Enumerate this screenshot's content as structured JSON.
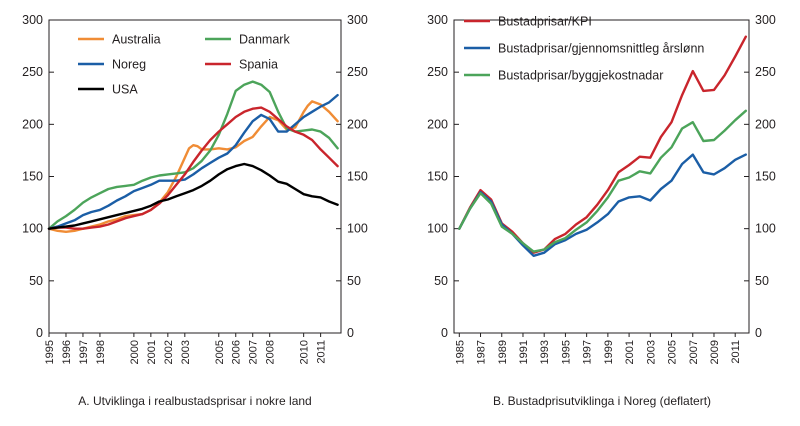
{
  "chart_data": [
    {
      "type": "line",
      "title": "A. Utviklinga i realbustadsprisar i nokre land",
      "xlabel": "",
      "ylabel": "",
      "xlim": [
        1995,
        2012.2
      ],
      "ylim": [
        0,
        300
      ],
      "y_ticks": [
        0,
        50,
        100,
        150,
        200,
        250,
        300
      ],
      "y_tick_labels": [
        "0",
        "50",
        "100",
        "150",
        "200",
        "250",
        "300"
      ],
      "x_ticks": [
        1995,
        1996,
        1997,
        1998,
        2000,
        2001,
        2002,
        2003,
        2005,
        2006,
        2007,
        2008,
        2010,
        2011
      ],
      "x_tick_labels": [
        "1995",
        "1996",
        "1997",
        "1998",
        "2000",
        "2001",
        "2002",
        "2003",
        "2005",
        "2006",
        "2007",
        "2008",
        "2010",
        "2011"
      ],
      "series": [
        {
          "name": "Australia",
          "color": "#f08c35",
          "x": [
            1995,
            1995.5,
            1996,
            1996.5,
            1997,
            1997.5,
            1998,
            1998.5,
            1999,
            1999.5,
            2000,
            2000.5,
            2001,
            2001.5,
            2002,
            2002.5,
            2003,
            2003.25,
            2003.5,
            2003.75,
            2004,
            2004.5,
            2005,
            2005.5,
            2006,
            2006.5,
            2007,
            2007.5,
            2008,
            2008.5,
            2009,
            2009.5,
            2010,
            2010.25,
            2010.5,
            2011,
            2011.5,
            2012
          ],
          "y": [
            100,
            98,
            97,
            98,
            100,
            102,
            104,
            107,
            109,
            112,
            113,
            114,
            118,
            125,
            135,
            150,
            168,
            177,
            180,
            179,
            176,
            176,
            177,
            176,
            178,
            184,
            188,
            198,
            207,
            204,
            195,
            197,
            212,
            218,
            222,
            219,
            212,
            203
          ]
        },
        {
          "name": "Danmark",
          "color": "#4ca45a",
          "x": [
            1995,
            1995.5,
            1996,
            1996.5,
            1997,
            1997.5,
            1998,
            1998.5,
            1999,
            1999.5,
            2000,
            2000.5,
            2001,
            2001.5,
            2002,
            2002.5,
            2003,
            2003.5,
            2004,
            2004.5,
            2005,
            2005.5,
            2006,
            2006.5,
            2007,
            2007.5,
            2008,
            2008.5,
            2009,
            2009.5,
            2010,
            2010.5,
            2011,
            2011.5,
            2012
          ],
          "y": [
            100,
            107,
            112,
            118,
            125,
            130,
            134,
            138,
            140,
            141,
            142,
            146,
            149,
            151,
            152,
            153,
            154,
            158,
            165,
            175,
            190,
            210,
            232,
            238,
            241,
            238,
            231,
            212,
            196,
            193,
            194,
            195,
            193,
            187,
            177
          ]
        },
        {
          "name": "Noreg",
          "color": "#1b5ea6",
          "x": [
            1995,
            1995.5,
            1996,
            1996.5,
            1997,
            1997.5,
            1998,
            1998.5,
            1999,
            1999.5,
            2000,
            2000.5,
            2001,
            2001.5,
            2002,
            2002.5,
            2003,
            2003.5,
            2004,
            2004.5,
            2005,
            2005.5,
            2006,
            2006.5,
            2007,
            2007.5,
            2008,
            2008.5,
            2009,
            2009.5,
            2010,
            2010.5,
            2011,
            2011.5,
            2012
          ],
          "y": [
            100,
            102,
            105,
            108,
            113,
            116,
            118,
            122,
            127,
            131,
            136,
            139,
            142,
            146,
            146,
            146,
            147,
            152,
            158,
            163,
            168,
            172,
            180,
            192,
            203,
            209,
            205,
            193,
            193,
            200,
            207,
            212,
            217,
            221,
            228
          ]
        },
        {
          "name": "Spania",
          "color": "#c9252c",
          "x": [
            1995,
            1995.5,
            1996,
            1996.5,
            1997,
            1997.5,
            1998,
            1998.5,
            1999,
            1999.5,
            2000,
            2000.5,
            2001,
            2001.5,
            2002,
            2002.5,
            2003,
            2003.5,
            2004,
            2004.5,
            2005,
            2005.5,
            2006,
            2006.5,
            2007,
            2007.5,
            2008,
            2008.5,
            2009,
            2009.5,
            2010,
            2010.5,
            2011,
            2011.5,
            2012
          ],
          "y": [
            100,
            101,
            101,
            100,
            100,
            101,
            102,
            104,
            107,
            110,
            112,
            114,
            118,
            124,
            132,
            142,
            152,
            164,
            175,
            185,
            193,
            200,
            207,
            212,
            215,
            216,
            212,
            205,
            198,
            193,
            190,
            185,
            176,
            168,
            160
          ]
        },
        {
          "name": "USA",
          "color": "#000000",
          "x": [
            1995,
            1995.5,
            1996,
            1996.5,
            1997,
            1997.5,
            1998,
            1998.5,
            1999,
            1999.5,
            2000,
            2000.5,
            2001,
            2001.5,
            2002,
            2002.5,
            2003,
            2003.5,
            2004,
            2004.5,
            2005,
            2005.5,
            2006,
            2006.5,
            2007,
            2007.5,
            2008,
            2008.5,
            2009,
            2009.5,
            2010,
            2010.5,
            2011,
            2011.5,
            2012
          ],
          "y": [
            100,
            101,
            102,
            103,
            105,
            107,
            109,
            111,
            113,
            115,
            117,
            119,
            122,
            126,
            128,
            131,
            134,
            137,
            141,
            146,
            152,
            157,
            160,
            162,
            160,
            156,
            151,
            145,
            143,
            138,
            133,
            131,
            130,
            126,
            123
          ]
        }
      ],
      "legend": [
        {
          "label": "Australia",
          "color": "#f08c35"
        },
        {
          "label": "Danmark",
          "color": "#4ca45a"
        },
        {
          "label": "Noreg",
          "color": "#1b5ea6"
        },
        {
          "label": "Spania",
          "color": "#c9252c"
        },
        {
          "label": "USA",
          "color": "#000000"
        }
      ]
    },
    {
      "type": "line",
      "title": "B. Bustadprisutviklinga i Noreg (deflatert)",
      "xlabel": "",
      "ylabel": "",
      "xlim": [
        1984.5,
        2012.3
      ],
      "ylim": [
        0,
        300
      ],
      "y_ticks": [
        0,
        50,
        100,
        150,
        200,
        250,
        300
      ],
      "y_tick_labels": [
        "0",
        "50",
        "100",
        "150",
        "200",
        "250",
        "300"
      ],
      "x_ticks": [
        1985,
        1987,
        1989,
        1991,
        1993,
        1995,
        1997,
        1999,
        2001,
        2003,
        2005,
        2007,
        2009,
        2011
      ],
      "x_tick_labels": [
        "1985",
        "1987",
        "1989",
        "1991",
        "1993",
        "1995",
        "1997",
        "1999",
        "2001",
        "2003",
        "2005",
        "2007",
        "2009",
        "2011"
      ],
      "series": [
        {
          "name": "Bustadprisar/KPI",
          "color": "#c9252c",
          "x": [
            1985,
            1986,
            1987,
            1988,
            1989,
            1990,
            1991,
            1992,
            1993,
            1994,
            1995,
            1996,
            1997,
            1998,
            1999,
            2000,
            2001,
            2002,
            2003,
            2004,
            2005,
            2006,
            2007,
            2008,
            2009,
            2010,
            2011,
            2012
          ],
          "y": [
            100,
            120,
            137,
            128,
            105,
            97,
            86,
            77,
            80,
            90,
            95,
            104,
            111,
            123,
            137,
            154,
            161,
            169,
            168,
            188,
            202,
            228,
            251,
            232,
            233,
            247,
            265,
            284
          ]
        },
        {
          "name": "Bustadprisar/gjennomsnittleg årslønn",
          "color": "#1b5ea6",
          "x": [
            1985,
            1986,
            1987,
            1988,
            1989,
            1990,
            1991,
            1992,
            1993,
            1994,
            1995,
            1996,
            1997,
            1998,
            1999,
            2000,
            2001,
            2002,
            2003,
            2004,
            2005,
            2006,
            2007,
            2008,
            2009,
            2010,
            2011,
            2012
          ],
          "y": [
            100,
            119,
            135,
            126,
            104,
            95,
            84,
            74,
            77,
            85,
            89,
            95,
            99,
            106,
            114,
            126,
            130,
            131,
            127,
            138,
            146,
            162,
            171,
            154,
            152,
            158,
            166,
            171
          ]
        },
        {
          "name": "Bustadprisar/byggjekostnadar",
          "color": "#4ca45a",
          "x": [
            1985,
            1986,
            1987,
            1988,
            1989,
            1990,
            1991,
            1992,
            1993,
            1994,
            1995,
            1996,
            1997,
            1998,
            1999,
            2000,
            2001,
            2002,
            2003,
            2004,
            2005,
            2006,
            2007,
            2008,
            2009,
            2010,
            2011,
            2012
          ],
          "y": [
            100,
            119,
            134,
            124,
            102,
            95,
            86,
            78,
            80,
            87,
            91,
            99,
            106,
            117,
            130,
            146,
            149,
            155,
            153,
            168,
            178,
            196,
            202,
            184,
            185,
            194,
            204,
            213
          ]
        }
      ],
      "legend": [
        {
          "label": "Bustadprisar/KPI",
          "color": "#c9252c"
        },
        {
          "label": "Bustadprisar/gjennomsnittleg årslønn",
          "color": "#1b5ea6"
        },
        {
          "label": "Bustadprisar/byggjekostnadar",
          "color": "#4ca45a"
        }
      ]
    }
  ]
}
